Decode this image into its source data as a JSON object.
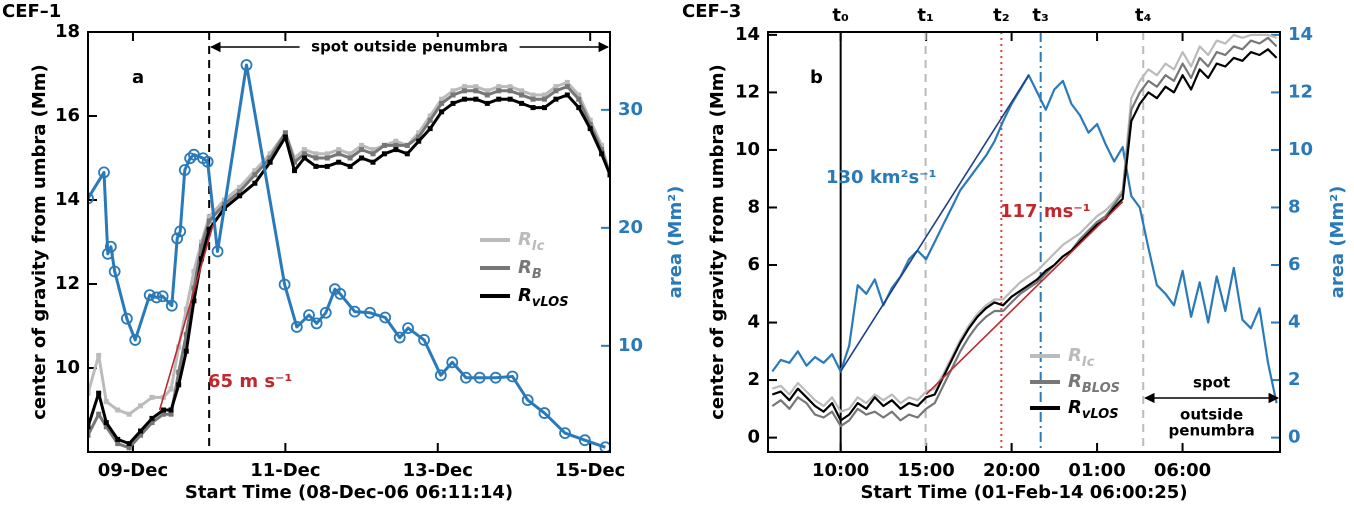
{
  "chart_data": [
    {
      "type": "line",
      "title": "CEF–1",
      "panel_label": "a",
      "x_label": "Start Time (08-Dec-06 06:11:14)",
      "y_label": "center of gravity from umbra (Mm)",
      "y2_label": "area (Mm²)",
      "xlim": [
        8.41,
        15.26
      ],
      "xticks": [
        {
          "value": 9,
          "label": "09-Dec"
        },
        {
          "value": 11,
          "label": "11-Dec"
        },
        {
          "value": 13,
          "label": "13-Dec"
        },
        {
          "value": 15,
          "label": "15-Dec"
        }
      ],
      "ylim": [
        8,
        18
      ],
      "yticks": [
        10,
        12,
        14,
        16,
        18
      ],
      "y2lim": [
        1,
        36.6
      ],
      "y2ticks": [
        10,
        20,
        30
      ],
      "x": [
        8.41,
        8.55,
        8.65,
        8.8,
        8.95,
        9.1,
        9.25,
        9.4,
        9.5,
        9.6,
        9.7,
        9.8,
        9.9,
        10.0,
        10.2,
        10.4,
        10.6,
        10.8,
        11.0,
        11.12,
        11.25,
        11.4,
        11.55,
        11.7,
        11.85,
        12.0,
        12.15,
        12.3,
        12.45,
        12.6,
        12.75,
        12.9,
        13.05,
        13.2,
        13.35,
        13.5,
        13.65,
        13.8,
        13.95,
        14.1,
        14.25,
        14.4,
        14.55,
        14.7,
        14.85,
        15.0,
        15.15,
        15.26
      ],
      "series": [
        {
          "name": "RIc",
          "color": "#bbbbbb",
          "marker": "square",
          "values": [
            9.4,
            10.3,
            9.2,
            9.0,
            8.9,
            9.1,
            9.3,
            9.3,
            9.5,
            10.5,
            11.4,
            12.3,
            13.0,
            13.6,
            14.0,
            14.3,
            14.7,
            15.1,
            15.6,
            15.0,
            15.2,
            15.1,
            15.1,
            15.2,
            15.1,
            15.3,
            15.2,
            15.3,
            15.4,
            15.3,
            15.6,
            16.0,
            16.4,
            16.6,
            16.7,
            16.7,
            16.6,
            16.7,
            16.7,
            16.6,
            16.5,
            16.5,
            16.7,
            16.8,
            16.5,
            15.9,
            15.3,
            14.6
          ]
        },
        {
          "name": "RB",
          "color": "#777777",
          "marker": "square",
          "values": [
            8.4,
            8.9,
            8.6,
            8.2,
            8.1,
            8.4,
            8.7,
            8.9,
            8.9,
            9.9,
            10.8,
            11.9,
            12.9,
            13.5,
            13.9,
            14.2,
            14.6,
            15.0,
            15.6,
            14.9,
            15.1,
            15.0,
            15.0,
            15.1,
            15.0,
            15.2,
            15.1,
            15.3,
            15.3,
            15.3,
            15.5,
            15.9,
            16.3,
            16.5,
            16.6,
            16.6,
            16.5,
            16.6,
            16.6,
            16.5,
            16.4,
            16.4,
            16.6,
            16.7,
            16.4,
            15.8,
            15.2,
            14.6
          ]
        },
        {
          "name": "RvLOS",
          "color": "#000000",
          "marker": "square",
          "values": [
            8.6,
            9.4,
            8.7,
            8.3,
            8.2,
            8.5,
            8.8,
            9.0,
            9.0,
            9.6,
            10.4,
            11.6,
            12.6,
            13.3,
            13.8,
            14.1,
            14.4,
            14.9,
            15.5,
            14.7,
            15.0,
            14.8,
            14.8,
            14.9,
            14.8,
            15.0,
            14.9,
            15.1,
            15.2,
            15.1,
            15.4,
            15.7,
            16.1,
            16.3,
            16.4,
            16.4,
            16.3,
            16.4,
            16.4,
            16.3,
            16.2,
            16.2,
            16.4,
            16.5,
            16.2,
            15.7,
            15.1,
            14.6
          ]
        },
        {
          "color": "#2a7ab9",
          "marker": "circle",
          "axis": "y2",
          "x": [
            8.41,
            8.62,
            8.67,
            8.71,
            8.76,
            8.92,
            9.03,
            9.22,
            9.31,
            9.39,
            9.51,
            9.58,
            9.62,
            9.68,
            9.75,
            9.8,
            9.92,
            9.98,
            10.11,
            10.49,
            10.99,
            11.15,
            11.31,
            11.41,
            11.53,
            11.65,
            11.72,
            11.91,
            12.11,
            12.31,
            12.5,
            12.61,
            12.82,
            13.04,
            13.19,
            13.37,
            13.55,
            13.76,
            13.98,
            14.18,
            14.4,
            14.67,
            14.93,
            15.2
          ],
          "values": [
            22.5,
            24.7,
            17.8,
            18.4,
            16.3,
            12.3,
            10.5,
            14.3,
            14.1,
            14.2,
            13.4,
            19.1,
            19.7,
            24.9,
            25.9,
            26.2,
            25.9,
            25.6,
            18.0,
            33.8,
            15.2,
            11.6,
            12.6,
            11.9,
            12.8,
            14.8,
            14.4,
            12.9,
            12.8,
            12.4,
            10.7,
            11.5,
            10.5,
            7.5,
            8.6,
            7.3,
            7.3,
            7.3,
            7.4,
            5.4,
            4.3,
            2.6,
            2.0,
            1.4
          ]
        }
      ],
      "fits": [
        {
          "color": "#c0282d",
          "x": [
            9.35,
            10.05
          ],
          "values": [
            9.0,
            13.4
          ]
        }
      ],
      "vlines": [
        {
          "x": 10.0,
          "color": "#000000",
          "style": "dashed"
        }
      ],
      "annotations": [
        {
          "text": "65 m s⁻¹",
          "color": "#c0282d"
        }
      ],
      "region_label": [
        "spot outside penumbra"
      ]
    },
    {
      "type": "line",
      "title": "CEF–3",
      "panel_label": "b",
      "x_label": "Start Time (01-Feb-14 06:00:25)",
      "y_label": "center of gravity from umbra (Mm)",
      "y2_label": "area (Mm²)",
      "xlim": [
        5.75,
        35.7
      ],
      "xticks": [
        {
          "value": 10,
          "label": "10:00"
        },
        {
          "value": 15,
          "label": "15:00"
        },
        {
          "value": 20,
          "label": "20:00"
        },
        {
          "value": 25,
          "label": "01:00"
        },
        {
          "value": 30,
          "label": "06:00"
        }
      ],
      "ylim": [
        -0.5,
        14.1
      ],
      "yticks": [
        0,
        2,
        4,
        6,
        8,
        10,
        12,
        14
      ],
      "y2lim": [
        -0.5,
        14.1
      ],
      "y2ticks": [
        0,
        2,
        4,
        6,
        8,
        10,
        12,
        14
      ],
      "x": [
        6.0,
        6.5,
        7.0,
        7.5,
        8.0,
        8.5,
        9.0,
        9.5,
        10.0,
        10.5,
        11.0,
        11.5,
        12.0,
        12.5,
        13.0,
        13.5,
        14.0,
        14.5,
        15.0,
        15.5,
        16.0,
        16.5,
        17.0,
        17.5,
        18.0,
        18.5,
        19.0,
        19.5,
        20.0,
        20.5,
        21.0,
        21.5,
        22.0,
        22.5,
        23.0,
        23.5,
        24.0,
        24.5,
        25.0,
        25.5,
        26.0,
        26.5,
        27.0,
        27.5,
        28.0,
        28.5,
        29.0,
        29.5,
        30.0,
        30.5,
        31.0,
        31.5,
        32.0,
        32.5,
        33.0,
        33.5,
        34.0,
        34.5,
        35.0,
        35.5
      ],
      "series": [
        {
          "color": "#2a7ab9",
          "axis": "y2",
          "values": [
            2.3,
            2.7,
            2.6,
            3.0,
            2.5,
            2.8,
            2.6,
            2.9,
            2.3,
            3.2,
            5.3,
            5.0,
            5.5,
            4.6,
            5.2,
            5.6,
            6.2,
            6.5,
            6.2,
            6.8,
            7.4,
            8.0,
            8.6,
            9.0,
            9.4,
            9.8,
            10.3,
            11.0,
            11.6,
            12.1,
            12.6,
            12.0,
            11.4,
            12.1,
            12.4,
            11.6,
            11.2,
            10.6,
            10.9,
            10.2,
            9.6,
            10.1,
            8.4,
            8.0,
            6.6,
            5.3,
            5.0,
            4.6,
            5.8,
            4.2,
            5.4,
            4.0,
            5.6,
            4.4,
            5.9,
            4.1,
            3.8,
            4.5,
            2.6,
            1.2
          ]
        },
        {
          "name": "RIc",
          "color": "#bbbbbb",
          "values": [
            1.7,
            1.8,
            1.5,
            1.9,
            1.6,
            1.3,
            1.1,
            1.4,
            0.9,
            1.0,
            1.4,
            1.2,
            1.5,
            1.3,
            1.5,
            1.2,
            1.4,
            1.3,
            1.6,
            1.7,
            2.2,
            2.8,
            3.4,
            3.9,
            4.3,
            4.6,
            4.8,
            4.8,
            5.1,
            5.4,
            5.6,
            5.8,
            6.1,
            6.4,
            6.7,
            6.9,
            7.1,
            7.4,
            7.7,
            7.9,
            8.2,
            8.6,
            11.8,
            12.4,
            12.8,
            12.6,
            13.0,
            12.8,
            13.4,
            12.9,
            13.6,
            13.3,
            13.8,
            13.7,
            14.0,
            13.9,
            14.0,
            14.0,
            14.0,
            13.9
          ]
        },
        {
          "name": "RBLOS",
          "color": "#777777",
          "values": [
            1.1,
            1.3,
            1.0,
            1.4,
            1.2,
            0.8,
            0.7,
            0.9,
            0.4,
            0.6,
            1.0,
            0.8,
            0.9,
            0.7,
            0.9,
            0.6,
            0.8,
            0.7,
            1.0,
            1.2,
            1.8,
            2.4,
            3.0,
            3.5,
            3.9,
            4.2,
            4.4,
            4.4,
            4.7,
            5.0,
            5.2,
            5.4,
            5.7,
            6.0,
            6.3,
            6.5,
            6.9,
            7.2,
            7.5,
            7.7,
            8.1,
            8.5,
            11.4,
            12.0,
            12.4,
            12.2,
            12.6,
            12.4,
            13.0,
            12.5,
            13.2,
            12.9,
            13.4,
            13.3,
            13.6,
            13.5,
            13.8,
            13.7,
            13.9,
            13.6
          ]
        },
        {
          "name": "RvLOS",
          "color": "#000000",
          "values": [
            1.5,
            1.6,
            1.3,
            1.7,
            1.4,
            1.1,
            0.9,
            1.2,
            0.6,
            0.8,
            1.2,
            1.0,
            1.4,
            1.1,
            1.3,
            1.0,
            1.2,
            1.1,
            1.4,
            1.5,
            2.1,
            2.7,
            3.3,
            3.8,
            4.2,
            4.5,
            4.7,
            4.6,
            4.9,
            5.1,
            5.3,
            5.5,
            5.8,
            6.0,
            6.3,
            6.5,
            6.8,
            7.1,
            7.4,
            7.6,
            8.0,
            8.3,
            11.0,
            11.6,
            12.0,
            11.8,
            12.2,
            12.0,
            12.6,
            12.1,
            12.8,
            12.5,
            13.0,
            12.9,
            13.2,
            13.1,
            13.4,
            13.3,
            13.5,
            13.2
          ]
        }
      ],
      "fits": [
        {
          "color": "#c0282d",
          "x": [
            15,
            26.5
          ],
          "values": [
            1.5,
            8.2
          ]
        },
        {
          "color": "#1f3f8a",
          "axis": "y2",
          "x": [
            10,
            21
          ],
          "values": [
            2.3,
            12.6
          ]
        }
      ],
      "vlines": [
        {
          "x": 10.0,
          "label": "t₀",
          "color": "#000000",
          "style": "solid"
        },
        {
          "x": 14.97,
          "label": "t₁",
          "color": "#bbbbbb",
          "style": "dashed"
        },
        {
          "x": 19.4,
          "label": "t₂",
          "color": "#e0403a",
          "style": "dotted"
        },
        {
          "x": 21.7,
          "label": "t₃",
          "color": "#2a7ab9",
          "style": "dashdot"
        },
        {
          "x": 27.7,
          "label": "t₄",
          "color": "#bbbbbb",
          "style": "dashed"
        }
      ],
      "annotations": [
        {
          "text": "130 km²s⁻¹",
          "color": "#2a7ab9"
        },
        {
          "text": "117 ms⁻¹",
          "color": "#c0282d"
        }
      ],
      "region_label": [
        "spot",
        "outside",
        "penumbra"
      ]
    }
  ]
}
